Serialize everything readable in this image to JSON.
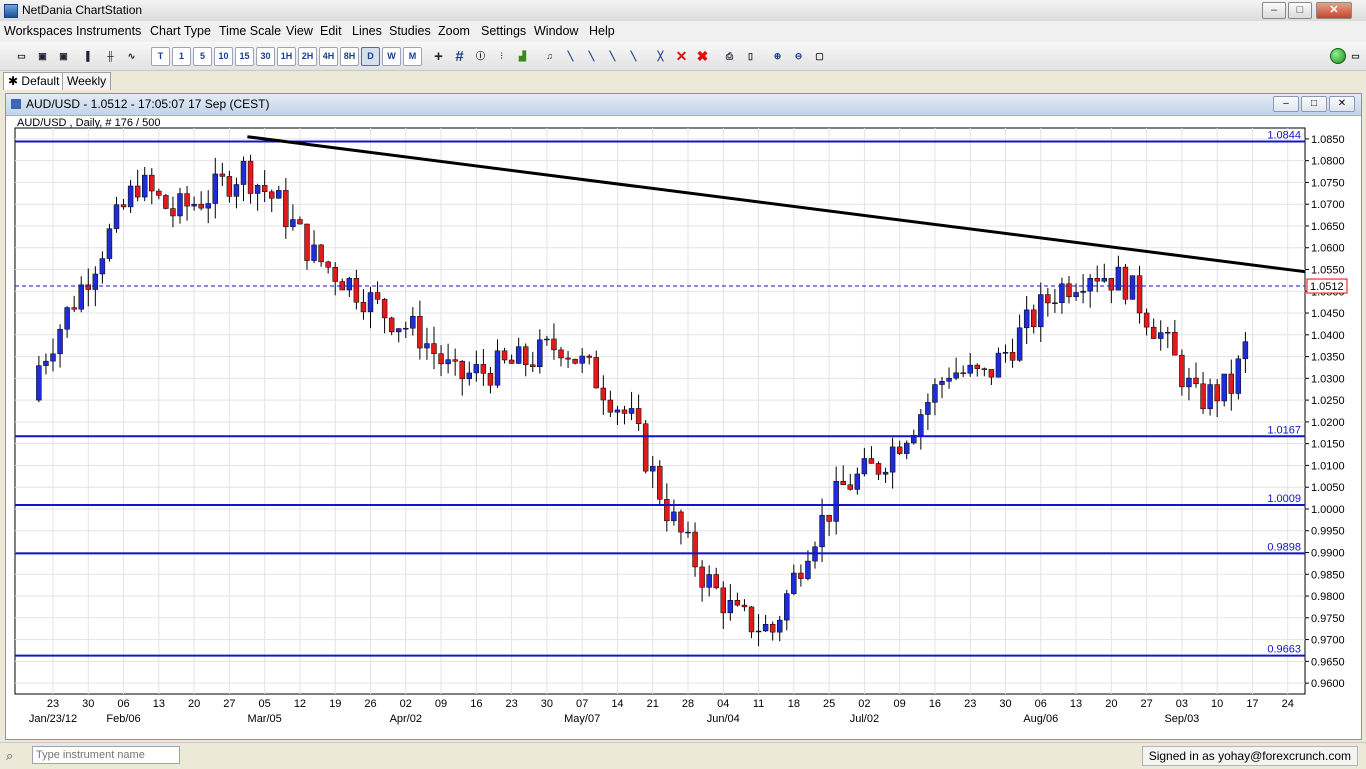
{
  "window": {
    "title": "NetDania ChartStation",
    "min": "–",
    "max": "□",
    "close": "✕"
  },
  "menu": [
    "Workspaces",
    "Instruments",
    "Chart Type",
    "Time Scale",
    "View",
    "Edit",
    "Lines",
    "Studies",
    "Zoom",
    "Settings",
    "Window",
    "Help"
  ],
  "toolbar": {
    "timeframes": [
      "T",
      "1",
      "5",
      "10",
      "15",
      "30",
      "1H",
      "2H",
      "4H",
      "8H",
      "D",
      "W",
      "M"
    ],
    "selected_timeframe": "D"
  },
  "tabs": [
    {
      "label": "Default",
      "icon": "asterisk-icon"
    },
    {
      "label": "Weekly"
    }
  ],
  "chart_window": {
    "title": "AUD/USD - 1.0512 - 17:05:07  17 Sep (CEST)",
    "subtitle": "AUD/USD , Daily, # 176 / 500"
  },
  "chart_data": {
    "type": "candlestick",
    "instrument": "AUD/USD",
    "ylim": [
      0.9575,
      1.0875
    ],
    "yticks": [
      0.96,
      0.965,
      0.97,
      0.975,
      0.98,
      0.985,
      0.99,
      0.995,
      1.0,
      1.005,
      1.01,
      1.015,
      1.02,
      1.025,
      1.03,
      1.035,
      1.04,
      1.045,
      1.05,
      1.055,
      1.06,
      1.065,
      1.07,
      1.075,
      1.08,
      1.085
    ],
    "ytick_labels": [
      "0.9600",
      "0.9650",
      "0.9700",
      "0.9750",
      "0.9800",
      "0.9850",
      "0.9900",
      "0.9950",
      "1.0000",
      "1.0050",
      "1.0100",
      "1.0150",
      "1.0200",
      "1.0250",
      "1.0300",
      "1.0350",
      "1.0400",
      "1.0450",
      "1.0500",
      "1.0550",
      "1.0600",
      "1.0650",
      "1.0700",
      "1.0750",
      "1.0800",
      "1.0850"
    ],
    "x_days": [
      "23",
      "30",
      "06",
      "13",
      "20",
      "27",
      "05",
      "12",
      "19",
      "26",
      "02",
      "09",
      "16",
      "23",
      "30",
      "07",
      "14",
      "21",
      "28",
      "04",
      "11",
      "18",
      "25",
      "02",
      "09",
      "16",
      "23",
      "30",
      "06",
      "13",
      "20",
      "27",
      "03",
      "10",
      "17",
      "24"
    ],
    "x_months": [
      "Jan/23/12",
      "Feb/06",
      "Mar/05",
      "Apr/02",
      "May/07",
      "Jun/04",
      "Jul/02",
      "Aug/06",
      "Sep/03"
    ],
    "horizontal_lines": [
      {
        "value": 1.0844,
        "label": "1.0844"
      },
      {
        "value": 1.0167,
        "label": "1.0167"
      },
      {
        "value": 1.0009,
        "label": "1.0009"
      },
      {
        "value": 0.9898,
        "label": "0.9898"
      },
      {
        "value": 0.9663,
        "label": "0.9663"
      }
    ],
    "current_price": {
      "value": 1.0512,
      "label": "1.0512"
    },
    "trendline": {
      "start": {
        "x": "Mar/01",
        "y": 1.0855
      },
      "end": {
        "x": "Sep/20",
        "y": 1.0545
      }
    },
    "weekly_closes": [
      1.03,
      1.045,
      1.06,
      1.075,
      1.068,
      1.072,
      1.078,
      1.07,
      1.058,
      1.052,
      1.045,
      1.04,
      1.03,
      1.032,
      1.034,
      1.038,
      1.03,
      1.02,
      1.0,
      0.985,
      0.975,
      0.972,
      0.992,
      1.005,
      1.01,
      1.02,
      1.032,
      1.03,
      1.04,
      1.05,
      1.055,
      1.052,
      1.04,
      1.025,
      1.028,
      1.05,
      1.0512
    ],
    "colors": {
      "up": "#1f2dd6",
      "down": "#e11b1b",
      "hline": "#1414c8",
      "trend": "#000000",
      "price": "#ff0000"
    }
  },
  "status": {
    "search_placeholder": "Type instrument name",
    "signed_in": "Signed in as yohay@forexcrunch.com"
  }
}
